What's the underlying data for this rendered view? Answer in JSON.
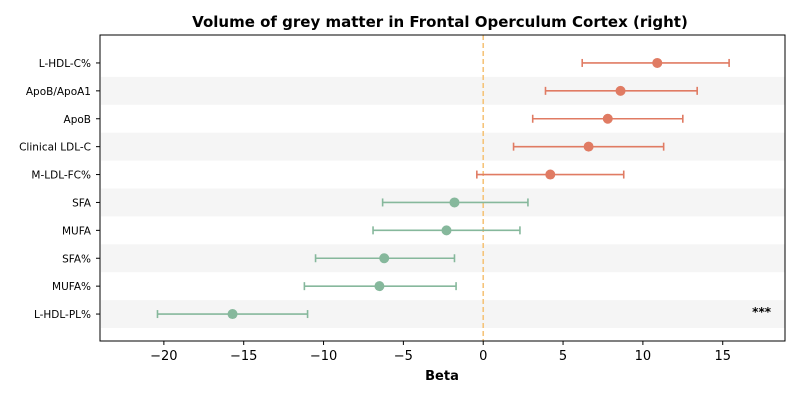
{
  "chart_data": {
    "type": "forest",
    "title": "Volume of grey matter in Frontal Operculum Cortex (right)",
    "xlabel": "Beta",
    "ylabel": "",
    "xlim": [
      -24.0,
      18.9
    ],
    "xticks": [
      -20,
      -15,
      -10,
      -5,
      0,
      5,
      10,
      15
    ],
    "xtick_labels": [
      "−20",
      "−15",
      "−10",
      "−5",
      "0",
      "5",
      "10",
      "15"
    ],
    "reference_line": {
      "x": 0,
      "color": "#f5c47a",
      "style": "dashed"
    },
    "row_shading": "alternating",
    "colors": {
      "positive": "#e07b63",
      "negative": "#86b89c",
      "band": "#f5f5f5"
    },
    "rows": [
      {
        "label": "L-HDL-C%",
        "beta": 10.9,
        "ci_low": 6.2,
        "ci_high": 15.4,
        "group": "positive",
        "annotation": ""
      },
      {
        "label": "ApoB/ApoA1",
        "beta": 8.6,
        "ci_low": 3.9,
        "ci_high": 13.4,
        "group": "positive",
        "annotation": ""
      },
      {
        "label": "ApoB",
        "beta": 7.8,
        "ci_low": 3.1,
        "ci_high": 12.5,
        "group": "positive",
        "annotation": ""
      },
      {
        "label": "Clinical LDL-C",
        "beta": 6.6,
        "ci_low": 1.9,
        "ci_high": 11.3,
        "group": "positive",
        "annotation": ""
      },
      {
        "label": "M-LDL-FC%",
        "beta": 4.2,
        "ci_low": -0.4,
        "ci_high": 8.8,
        "group": "positive",
        "annotation": ""
      },
      {
        "label": "SFA",
        "beta": -1.8,
        "ci_low": -6.3,
        "ci_high": 2.8,
        "group": "negative",
        "annotation": ""
      },
      {
        "label": "MUFA",
        "beta": -2.3,
        "ci_low": -6.9,
        "ci_high": 2.3,
        "group": "negative",
        "annotation": ""
      },
      {
        "label": "SFA%",
        "beta": -6.2,
        "ci_low": -10.5,
        "ci_high": -1.8,
        "group": "negative",
        "annotation": ""
      },
      {
        "label": "MUFA%",
        "beta": -6.5,
        "ci_low": -11.2,
        "ci_high": -1.7,
        "group": "negative",
        "annotation": ""
      },
      {
        "label": "L-HDL-PL%",
        "beta": -15.7,
        "ci_low": -20.4,
        "ci_high": -11.0,
        "group": "negative",
        "annotation": "***"
      }
    ]
  }
}
